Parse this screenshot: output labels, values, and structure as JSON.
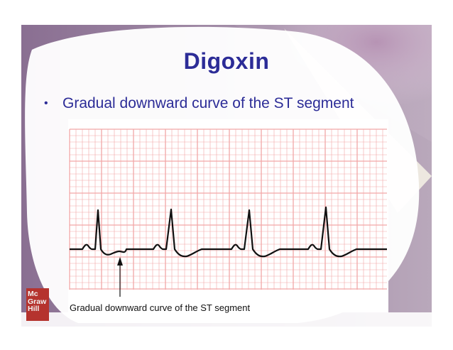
{
  "slide": {
    "title": "Digoxin",
    "bullets": [
      "Gradual downward curve of the ST segment"
    ],
    "figure_caption": "Gradual downward curve of the ST segment",
    "logo": {
      "line1": "Mc",
      "line2": "Graw",
      "line3": "Hill"
    }
  },
  "colors": {
    "title_text": "#2c2c97",
    "grid_line": "#f2a7a7",
    "ecg_trace": "#111111",
    "logo_bg": "#b5332e"
  },
  "icons": {
    "bullet": "bullet-dot-icon",
    "arrow": "up-arrow-icon",
    "logo": "mcgraw-hill-logo"
  }
}
